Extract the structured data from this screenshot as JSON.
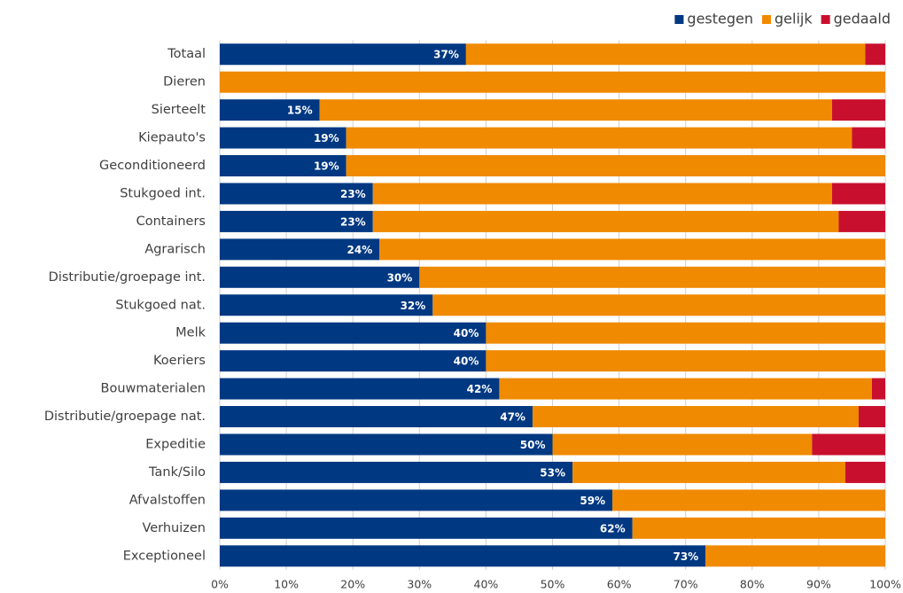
{
  "chart_data": {
    "type": "stacked-barh",
    "categories": [
      "Totaal",
      "Dieren",
      "Sierteelt",
      "Kiepauto's",
      "Geconditioneerd",
      "Stukgoed int.",
      "Containers",
      "Agrarisch",
      "Distributie/groepage int.",
      "Stukgoed nat.",
      "Melk",
      "Koeriers",
      "Bouwmaterialen",
      "Distributie/groepage nat.",
      "Expeditie",
      "Tank/Silo",
      "Afvalstoffen",
      "Verhuizen",
      "Exceptioneel"
    ],
    "series": [
      {
        "name": "gestegen",
        "color": "#003882",
        "values": [
          37,
          0,
          15,
          19,
          19,
          23,
          23,
          24,
          30,
          32,
          40,
          40,
          42,
          47,
          50,
          53,
          59,
          62,
          73
        ],
        "value_labels": [
          "37%",
          null,
          "15%",
          "19%",
          "19%",
          "23%",
          "23%",
          "24%",
          "30%",
          "32%",
          "40%",
          "40%",
          "42%",
          "47%",
          "50%",
          "53%",
          "59%",
          "62%",
          "73%"
        ]
      },
      {
        "name": "gelijk",
        "color": "#f08a00",
        "values": [
          60,
          100,
          77,
          76,
          81,
          69,
          70,
          76,
          70,
          68,
          60,
          60,
          56,
          49,
          39,
          41,
          41,
          38,
          27
        ]
      },
      {
        "name": "gedaald",
        "color": "#c8102e",
        "values": [
          3,
          0,
          8,
          5,
          0,
          8,
          7,
          0,
          0,
          0,
          0,
          0,
          2,
          4,
          11,
          6,
          0,
          0,
          0
        ]
      }
    ],
    "xlim": [
      0,
      100
    ],
    "xticks": [
      {
        "value": 0,
        "label": "0%"
      },
      {
        "value": 10,
        "label": "10%"
      },
      {
        "value": 20,
        "label": "20%"
      },
      {
        "value": 30,
        "label": "30%"
      },
      {
        "value": 40,
        "label": "40%"
      },
      {
        "value": 50,
        "label": "50%"
      },
      {
        "value": 60,
        "label": "60%"
      },
      {
        "value": 70,
        "label": "70%"
      },
      {
        "value": 80,
        "label": "80%"
      },
      {
        "value": 90,
        "label": "90%"
      },
      {
        "value": 100,
        "label": "100%"
      }
    ],
    "grid": true,
    "legend": "top-right"
  }
}
